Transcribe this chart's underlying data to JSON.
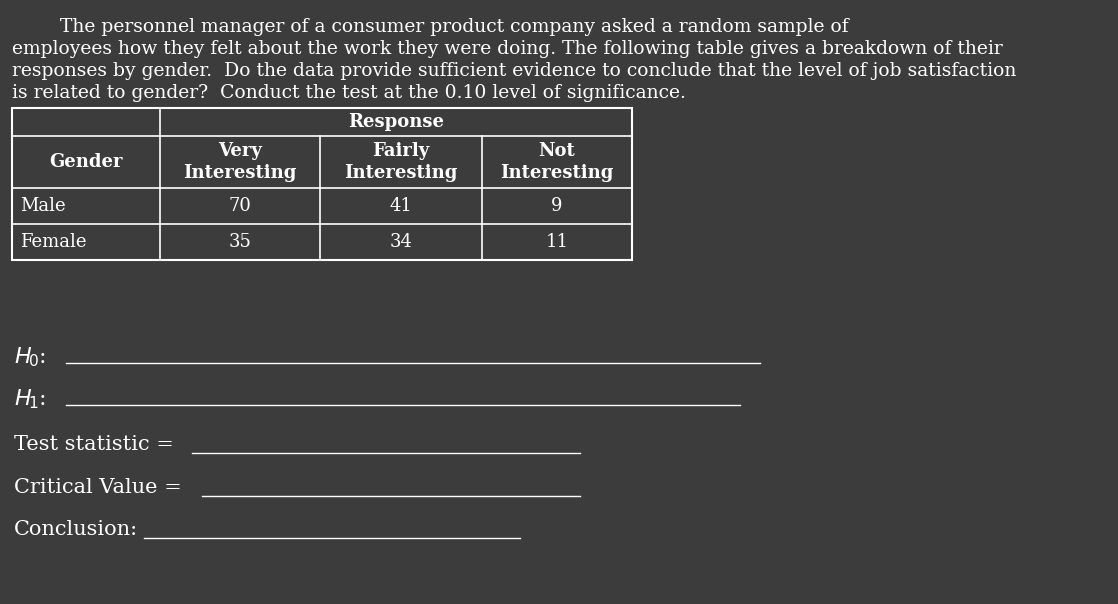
{
  "background_color": "#3c3c3c",
  "text_color": "#ffffff",
  "line_color": "#ffffff",
  "font_family": "serif",
  "para_lines": [
    "        The personnel manager of a consumer product company asked a random sample of",
    "employees how they felt about the work they were doing. The following table gives a breakdown of their",
    "responses by gender.  Do the data provide sufficient evidence to conclude that the level of job satisfaction",
    "is related to gender?  Conduct the test at the 0.10 level of significance."
  ],
  "response_header": "Response",
  "col_headers_line1": [
    "Gender",
    "Very",
    "Fairly",
    "Not"
  ],
  "col_headers_line2": [
    "",
    "Interesting",
    "Interesting",
    "Interesting"
  ],
  "data_rows": [
    [
      "Male",
      "70",
      "41",
      "9"
    ],
    [
      "Female",
      "35",
      "34",
      "11"
    ]
  ],
  "H0_label": "H₀:",
  "H1_label": "H₁:",
  "test_stat_label": "Test statistic =",
  "critical_label": "Critical Value =",
  "conclusion_label": "Conclusion:",
  "para_fontsize": 13.5,
  "table_fontsize": 13,
  "label_fontsize": 15
}
